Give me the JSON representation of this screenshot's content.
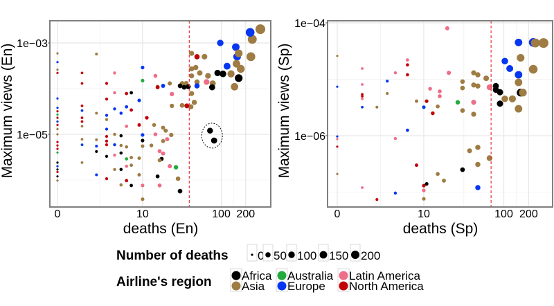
{
  "colors": {
    "Africa": "#000000",
    "Asia": "#9e7c43",
    "Australia": "#22aa3f",
    "Europe": "#0536f0",
    "Latin America": "#ee6d88",
    "North America": "#c20005",
    "threshold": "#e8343a"
  },
  "legend": {
    "size_title": "Number of deaths",
    "size_values": [
      0,
      50,
      100,
      150,
      200
    ],
    "size_labels": [
      "0",
      "50",
      "100",
      "150",
      "200"
    ],
    "region_title": "Airline's region",
    "regions": [
      "Africa",
      "Asia",
      "Australia",
      "Europe",
      "Latin America",
      "North America"
    ]
  },
  "chart_data": [
    {
      "type": "scatter",
      "xlabel": "deaths (En)",
      "ylabel": "Maximum views (En)",
      "x_scale": "log10(x+1)",
      "y_scale": "log10",
      "xlim": [
        0,
        310
      ],
      "ylim": [
        2.8e-07,
        0.003
      ],
      "xticks": [
        0,
        10,
        100,
        200
      ],
      "xtick_labels": [
        "0",
        "10",
        "100",
        "200"
      ],
      "yticks": [
        0.001,
        1e-05
      ],
      "ytick_labels": [
        "1e−03",
        "1e−05"
      ],
      "threshold_deaths": 40,
      "highlight": "dashed circle around two Africa points near 75 deaths",
      "point_fields": [
        "deaths",
        "views",
        "region_index"
      ],
      "points": [
        [
          0,
          0.00059,
          1
        ],
        [
          0,
          0.00038,
          3
        ],
        [
          0,
          0.00026,
          1
        ],
        [
          0,
          0.00022,
          5
        ],
        [
          0,
          6.1e-05,
          3
        ],
        [
          0,
          3.8e-05,
          3
        ],
        [
          0,
          3.2e-05,
          5
        ],
        [
          0,
          2.7e-05,
          2
        ],
        [
          0,
          2.3e-05,
          5
        ],
        [
          0,
          1.9e-05,
          3
        ],
        [
          0,
          1.6e-05,
          5
        ],
        [
          0,
          1.3e-05,
          1
        ],
        [
          0,
          1e-05,
          1
        ],
        [
          0,
          6.8e-06,
          5
        ],
        [
          0,
          5.7e-06,
          5
        ],
        [
          0,
          4.8e-06,
          5
        ],
        [
          0,
          4e-06,
          2
        ],
        [
          0,
          2.4e-06,
          0
        ],
        [
          0,
          2e-06,
          3
        ],
        [
          0,
          1.7e-06,
          0
        ],
        [
          0,
          1.5e-06,
          5
        ],
        [
          0,
          1.2e-06,
          0
        ],
        [
          0,
          9.7e-07,
          1
        ],
        [
          1,
          0.00022,
          5
        ],
        [
          1,
          0.00013,
          5
        ],
        [
          1,
          4.2e-05,
          5
        ],
        [
          1,
          3.3e-05,
          3
        ],
        [
          1,
          2.3e-05,
          5
        ],
        [
          1,
          1.9e-05,
          5
        ],
        [
          1,
          1.5e-05,
          1
        ],
        [
          1,
          7.8e-06,
          1
        ],
        [
          1,
          5.9e-06,
          3
        ],
        [
          1,
          2.4e-06,
          1
        ],
        [
          2,
          0.00057,
          1
        ],
        [
          2,
          2.9e-05,
          1
        ],
        [
          2,
          7.6e-06,
          1
        ],
        [
          2,
          5.5e-06,
          3
        ],
        [
          2,
          4.2e-06,
          0
        ],
        [
          2,
          1.3e-06,
          3
        ],
        [
          3,
          0.00013,
          5
        ],
        [
          3,
          5.9e-05,
          5
        ],
        [
          3,
          2.6e-05,
          3
        ],
        [
          3,
          2.1e-05,
          1
        ],
        [
          3,
          1.3e-05,
          3
        ],
        [
          3,
          9e-06,
          5
        ],
        [
          3,
          7.1e-06,
          5
        ],
        [
          3,
          5.9e-06,
          5
        ],
        [
          3,
          3.3e-06,
          0
        ],
        [
          3,
          1.07e-06,
          5
        ],
        [
          4,
          0.00022,
          4
        ],
        [
          4,
          8.1e-05,
          4
        ],
        [
          4,
          3.6e-05,
          3
        ],
        [
          4,
          1e-05,
          1
        ],
        [
          4,
          5.9e-06,
          3
        ],
        [
          4,
          3.5e-06,
          4
        ],
        [
          4,
          1.7e-06,
          1
        ],
        [
          5,
          2.9e-05,
          3
        ],
        [
          5,
          9.3e-06,
          0
        ],
        [
          5,
          5.7e-06,
          1
        ],
        [
          5,
          3.9e-06,
          0
        ],
        [
          5,
          1.7e-06,
          0
        ],
        [
          5,
          7.8e-07,
          1
        ],
        [
          6,
          7.8e-05,
          5
        ],
        [
          6,
          4e-05,
          3
        ],
        [
          6,
          1.5e-05,
          4
        ],
        [
          6,
          5.3e-06,
          1
        ],
        [
          6,
          2.9e-06,
          2
        ],
        [
          6,
          2e-06,
          4
        ],
        [
          6,
          9.7e-07,
          5
        ],
        [
          7,
          8.1e-05,
          0
        ],
        [
          7,
          3.4e-05,
          5
        ],
        [
          7,
          3.1e-06,
          1
        ],
        [
          7,
          2.1e-06,
          1
        ],
        [
          7,
          7.6e-07,
          0
        ],
        [
          9,
          5.5e-05,
          3
        ],
        [
          9,
          1.6e-05,
          5
        ],
        [
          9,
          3e-06,
          1
        ],
        [
          9,
          1.3e-06,
          1
        ],
        [
          10,
          0.00029,
          3
        ],
        [
          10,
          0.00015,
          2
        ],
        [
          10,
          9.7e-06,
          3
        ],
        [
          10,
          7.3e-06,
          0
        ],
        [
          10,
          5.5e-06,
          1
        ],
        [
          10,
          7.6e-07,
          4
        ],
        [
          10,
          3.8e-07,
          1
        ],
        [
          11.4,
          2.3e-05,
          5
        ],
        [
          13.1,
          5.7e-06,
          1
        ],
        [
          14.8,
          0.00019,
          4
        ],
        [
          15.8,
          0.00011,
          1
        ],
        [
          15.8,
          0.000107,
          5
        ],
        [
          18.6,
          0.000115,
          3
        ],
        [
          24.1,
          7.6e-05,
          4
        ],
        [
          22.7,
          0.00013,
          1
        ],
        [
          14.8,
          1e-05,
          4
        ],
        [
          16.8,
          4.3e-06,
          4
        ],
        [
          18.6,
          3.8e-06,
          4
        ],
        [
          17.8,
          2.9e-06,
          0
        ],
        [
          16.8,
          7.6e-07,
          4
        ],
        [
          14.2,
          1.6e-05,
          1
        ],
        [
          18.6,
          1.4e-05,
          1
        ],
        [
          18.6,
          7.1e-06,
          1
        ],
        [
          16.8,
          2.7e-06,
          1
        ],
        [
          15.8,
          1.2e-06,
          0
        ],
        [
          20.1,
          1.2e-05,
          1
        ],
        [
          21,
          7.8e-06,
          4
        ],
        [
          23.7,
          9.7e-06,
          1
        ],
        [
          24.1,
          4.2e-05,
          1
        ],
        [
          32.5,
          4.3e-05,
          1
        ],
        [
          28.9,
          1.07e-06,
          1
        ],
        [
          30.6,
          5.7e-07,
          0
        ],
        [
          27.2,
          1.9e-06,
          2
        ],
        [
          22.7,
          2e-06,
          4
        ],
        [
          42.8,
          0.00059,
          1
        ],
        [
          50,
          0.0005,
          5
        ],
        [
          62,
          0.0005,
          1
        ],
        [
          42.8,
          0.00027,
          1
        ],
        [
          48.2,
          0.00029,
          1
        ],
        [
          54.2,
          0.00022,
          1
        ],
        [
          50,
          0.00014,
          1
        ],
        [
          42.8,
          0.00019,
          1
        ],
        [
          42.8,
          7.8e-05,
          1
        ],
        [
          46.3,
          5e-05,
          1
        ],
        [
          42,
          4e-05,
          1
        ],
        [
          37.3,
          4.2e-05,
          5
        ],
        [
          32.5,
          0.00013,
          1
        ],
        [
          36.6,
          0.00013,
          1
        ],
        [
          30.6,
          0.000115,
          0
        ],
        [
          34.5,
          0.000107,
          0
        ],
        [
          38.8,
          0.00011,
          0
        ],
        [
          50,
          0.000115,
          3
        ],
        [
          68.5,
          0.00019,
          1
        ],
        [
          65.8,
          0.00014,
          4
        ],
        [
          78.4,
          0.00013,
          1
        ],
        [
          77,
          0.000107,
          0
        ],
        [
          89.8,
          0.00022,
          0
        ],
        [
          105,
          0.00021,
          0
        ],
        [
          132,
          0.00021,
          1
        ],
        [
          97.2,
          0.001,
          3
        ],
        [
          118,
          0.00031,
          3
        ],
        [
          151,
          0.00081,
          3
        ],
        [
          157,
          0.0005,
          3
        ],
        [
          164,
          0.00059,
          1
        ],
        [
          154,
          0.00035,
          1
        ],
        [
          174,
          0.00027,
          1
        ],
        [
          164,
          0.00017,
          0
        ],
        [
          146,
          0.00011,
          1
        ],
        [
          232,
          0.0005,
          1
        ],
        [
          241,
          0.0012,
          1
        ],
        [
          227,
          0.0017,
          3
        ],
        [
          303,
          0.002,
          1
        ],
        [
          72.6,
          1.2e-05,
          0
        ],
        [
          81.6,
          7.3e-06,
          0
        ]
      ]
    },
    {
      "type": "scatter",
      "xlabel": "deaths (Sp)",
      "ylabel": "Maximum views (Sp)",
      "x_scale": "log10(x+1)",
      "y_scale": "log10",
      "xlim": [
        0,
        310
      ],
      "ylim": [
        5.5e-08,
        0.00011
      ],
      "xticks": [
        0,
        10,
        100,
        200
      ],
      "xtick_labels": [
        "0",
        "10",
        "100",
        "200"
      ],
      "yticks": [
        0.0001,
        1e-06
      ],
      "ytick_labels": [
        "1e−04",
        "1e−06"
      ],
      "threshold_deaths": 70,
      "point_fields": [
        "deaths",
        "views",
        "region_index"
      ],
      "points": [
        [
          0,
          2.6e-05,
          1
        ],
        [
          0,
          7.4e-06,
          3
        ],
        [
          0,
          9.7e-07,
          3
        ],
        [
          0,
          8.7e-07,
          4
        ],
        [
          0,
          6.4e-07,
          5
        ],
        [
          0,
          2.1e-07,
          1
        ],
        [
          1,
          1.55e-05,
          4
        ],
        [
          1,
          8.1e-06,
          4
        ],
        [
          1,
          5.4e-06,
          5
        ],
        [
          1,
          5e-06,
          5
        ],
        [
          1,
          4.5e-06,
          4
        ],
        [
          1,
          3.2e-06,
          3
        ],
        [
          1,
          1.2e-07,
          4
        ],
        [
          2,
          3.2e-06,
          1
        ],
        [
          2,
          7.4e-08,
          5
        ],
        [
          3,
          9.3e-06,
          3
        ],
        [
          3,
          5.6e-06,
          1
        ],
        [
          4,
          1.3e-05,
          4
        ],
        [
          4,
          8.9e-07,
          4
        ],
        [
          4,
          9.6e-08,
          3
        ],
        [
          6,
          1.8e-05,
          5
        ],
        [
          6,
          1.2e-05,
          5
        ],
        [
          6,
          2.2e-05,
          4
        ],
        [
          6,
          1.25e-06,
          3
        ],
        [
          8,
          4.1e-06,
          1
        ],
        [
          8,
          3e-07,
          5
        ],
        [
          10,
          3.2e-06,
          3
        ],
        [
          10,
          1.07e-07,
          4
        ],
        [
          10,
          7.6e-08,
          1
        ],
        [
          10,
          1.3e-07,
          5
        ],
        [
          10.9,
          4.1e-06,
          5
        ],
        [
          12.1,
          6.8e-06,
          4
        ],
        [
          10.9,
          1.4e-07,
          0
        ],
        [
          13.1,
          2.5e-06,
          5
        ],
        [
          15.2,
          3.3e-06,
          1
        ],
        [
          16.1,
          6.1e-06,
          4
        ],
        [
          16.1,
          5e-06,
          4
        ],
        [
          15.2,
          2.1e-07,
          1
        ],
        [
          18.2,
          1.6e-07,
          1
        ],
        [
          21,
          1.3e-05,
          4
        ],
        [
          20.1,
          8e-05,
          4
        ],
        [
          27.2,
          3.9e-06,
          2
        ],
        [
          31.2,
          9.1e-06,
          1
        ],
        [
          31.2,
          7e-06,
          1
        ],
        [
          31.2,
          2.8e-06,
          1
        ],
        [
          31.2,
          2.5e-07,
          0
        ],
        [
          38.1,
          5.4e-07,
          1
        ],
        [
          42.8,
          1.3e-05,
          1
        ],
        [
          42.8,
          7.9e-06,
          1
        ],
        [
          42.8,
          2.4e-06,
          1
        ],
        [
          42.8,
          3.9e-06,
          4
        ],
        [
          48.2,
          1.2e-05,
          1
        ],
        [
          48.2,
          7.6e-06,
          1
        ],
        [
          48.2,
          6.2e-07,
          1
        ],
        [
          48.2,
          3.1e-07,
          1
        ],
        [
          48.2,
          1.2e-07,
          3
        ],
        [
          61,
          1.04e-05,
          1
        ],
        [
          67,
          7.2e-06,
          4
        ],
        [
          67,
          4e-07,
          1
        ],
        [
          79.9,
          7.6e-06,
          0
        ],
        [
          79.9,
          6.5e-06,
          0
        ],
        [
          89.8,
          5.9e-06,
          0
        ],
        [
          89.8,
          3.7e-06,
          0
        ],
        [
          103,
          2.1e-05,
          3
        ],
        [
          103,
          4.5e-06,
          1
        ],
        [
          118,
          1.55e-05,
          3
        ],
        [
          127,
          4.5e-06,
          1
        ],
        [
          151,
          4.5e-05,
          3
        ],
        [
          151,
          1.2e-05,
          3
        ],
        [
          151,
          8.8e-06,
          1
        ],
        [
          151,
          3e-06,
          1
        ],
        [
          160,
          2.4e-05,
          1
        ],
        [
          160,
          5.8e-06,
          0
        ],
        [
          170,
          5.8e-06,
          1
        ],
        [
          227,
          4.5e-05,
          3
        ],
        [
          227,
          1.5e-05,
          1
        ],
        [
          241,
          4.4e-05,
          1
        ],
        [
          303,
          4.4e-05,
          1
        ]
      ]
    }
  ]
}
